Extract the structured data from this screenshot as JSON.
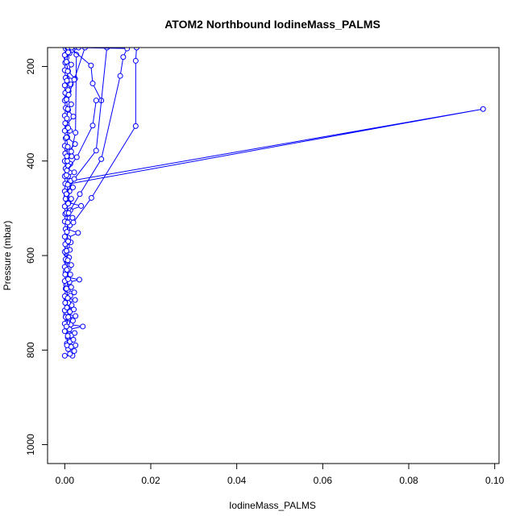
{
  "chart_data": {
    "type": "line",
    "title": "ATOM2 Northbound IodineMass_PALMS",
    "xlabel": "IodineMass_PALMS",
    "ylabel": "Pressure (mbar)",
    "xlim": [
      -0.004,
      0.101
    ],
    "ylim": [
      1040,
      160
    ],
    "y_reversed": true,
    "x_ticks": [
      0.0,
      0.02,
      0.04,
      0.06,
      0.08,
      0.1
    ],
    "x_tick_labels": [
      "0.00",
      "0.02",
      "0.04",
      "0.06",
      "0.08",
      "0.10"
    ],
    "y_ticks": [
      200,
      400,
      600,
      800,
      1000
    ],
    "y_tick_labels": [
      "200",
      "400",
      "600",
      "800",
      "1000"
    ],
    "grid": false,
    "legend": "none",
    "color": "#0000ff",
    "series": [
      {
        "points": [
          [
            0.0,
            812
          ],
          [
            0.0018,
            812
          ],
          [
            0.0012,
            808
          ],
          [
            0.0022,
            802
          ],
          [
            0.0008,
            798
          ],
          [
            0.0015,
            793
          ],
          [
            0.0025,
            790
          ],
          [
            0.0005,
            786
          ],
          [
            0.0012,
            782
          ],
          [
            0.002,
            778
          ],
          [
            0.0007,
            773
          ],
          [
            0.0015,
            769
          ],
          [
            0.0023,
            764
          ],
          [
            0.0004,
            760
          ],
          [
            0.0011,
            756
          ],
          [
            0.0042,
            750
          ],
          [
            0.0014,
            746
          ],
          [
            0.0006,
            742
          ],
          [
            0.0019,
            738
          ],
          [
            0.0009,
            733
          ],
          [
            0.0025,
            728
          ],
          [
            0.0003,
            724
          ],
          [
            0.0012,
            719
          ],
          [
            0.0021,
            714
          ],
          [
            0.0006,
            710
          ],
          [
            0.0016,
            705
          ],
          [
            0.0008,
            700
          ],
          [
            0.0024,
            694
          ],
          [
            0.0003,
            690
          ],
          [
            0.0013,
            685
          ],
          [
            0.0022,
            678
          ],
          [
            0.0007,
            673
          ],
          [
            0.0015,
            667
          ],
          [
            0.0003,
            662
          ],
          [
            0.0011,
            656
          ],
          [
            0.0034,
            651
          ],
          [
            0.0006,
            646
          ],
          [
            0.0013,
            640
          ],
          [
            0.0002,
            634
          ],
          [
            0.0009,
            628
          ],
          [
            0.0015,
            620
          ],
          [
            0.0004,
            612
          ],
          [
            0.001,
            604
          ],
          [
            0.0003,
            596
          ],
          [
            0.0012,
            588
          ],
          [
            0.0005,
            580
          ],
          [
            0.0014,
            572
          ],
          [
            0.0008,
            562
          ],
          [
            0.0031,
            552
          ],
          [
            0.0006,
            544
          ],
          [
            0.0012,
            536
          ],
          [
            0.0003,
            528
          ],
          [
            0.0018,
            520
          ],
          [
            0.0007,
            512
          ],
          [
            0.0013,
            504
          ],
          [
            0.0038,
            495
          ],
          [
            0.0009,
            488
          ],
          [
            0.0015,
            480
          ],
          [
            0.0004,
            472
          ],
          [
            0.0011,
            464
          ],
          [
            0.0019,
            456
          ],
          [
            0.0006,
            449
          ],
          [
            0.0973,
            290
          ],
          [
            0.0014,
            442
          ],
          [
            0.0008,
            432
          ],
          [
            0.0022,
            424
          ],
          [
            0.0005,
            416
          ],
          [
            0.0013,
            406
          ],
          [
            0.0004,
            398
          ],
          [
            0.0016,
            390
          ],
          [
            0.0008,
            380
          ],
          [
            0.0024,
            364
          ],
          [
            0.0006,
            350
          ],
          [
            0.0012,
            336
          ],
          [
            0.0005,
            322
          ],
          [
            0.002,
            306
          ],
          [
            0.0008,
            292
          ],
          [
            0.0015,
            280
          ],
          [
            0.0004,
            268
          ],
          [
            0.0009,
            252
          ],
          [
            0.0014,
            238
          ],
          [
            0.0005,
            224
          ],
          [
            0.0024,
            226
          ],
          [
            0.0008,
            210
          ],
          [
            0.0015,
            196
          ],
          [
            0.0004,
            182
          ],
          [
            0.0011,
            172
          ],
          [
            0.0032,
            160
          ]
        ]
      },
      {
        "points": [
          [
            0.0,
            760
          ],
          [
            0.0,
            744
          ],
          [
            0.0002,
            730
          ],
          [
            0.0,
            716
          ],
          [
            0.0001,
            700
          ],
          [
            0.0,
            686
          ],
          [
            0.0002,
            670
          ],
          [
            0.0,
            654
          ],
          [
            0.0001,
            640
          ],
          [
            0.0,
            624
          ],
          [
            0.0002,
            608
          ],
          [
            0.0,
            592
          ],
          [
            0.0001,
            576
          ],
          [
            0.0,
            560
          ],
          [
            0.0002,
            544
          ],
          [
            0.0,
            528
          ],
          [
            0.0001,
            512
          ],
          [
            0.0,
            496
          ],
          [
            0.0002,
            480
          ],
          [
            0.0,
            464
          ],
          [
            0.0001,
            448
          ],
          [
            0.0,
            432
          ],
          [
            0.0002,
            416
          ],
          [
            0.0,
            400
          ],
          [
            0.0001,
            384
          ],
          [
            0.0,
            368
          ],
          [
            0.0002,
            352
          ],
          [
            0.0,
            336
          ],
          [
            0.0001,
            320
          ],
          [
            0.0,
            304
          ],
          [
            0.0002,
            288
          ],
          [
            0.0,
            272
          ],
          [
            0.0001,
            256
          ],
          [
            0.0,
            240
          ],
          [
            0.0002,
            224
          ],
          [
            0.0,
            208
          ],
          [
            0.0001,
            192
          ],
          [
            0.0,
            176
          ],
          [
            0.0002,
            162
          ]
        ]
      },
      {
        "points": [
          [
            0.0005,
            790
          ],
          [
            0.0007,
            770
          ],
          [
            0.0004,
            750
          ],
          [
            0.0008,
            730
          ],
          [
            0.0005,
            710
          ],
          [
            0.0007,
            690
          ],
          [
            0.0004,
            670
          ],
          [
            0.0008,
            650
          ],
          [
            0.0005,
            630
          ],
          [
            0.0007,
            610
          ],
          [
            0.0004,
            590
          ],
          [
            0.0008,
            570
          ],
          [
            0.0005,
            550
          ],
          [
            0.0007,
            530
          ],
          [
            0.0004,
            510
          ],
          [
            0.0008,
            490
          ],
          [
            0.0005,
            470
          ],
          [
            0.0007,
            450
          ],
          [
            0.0004,
            430
          ],
          [
            0.0008,
            410
          ],
          [
            0.0005,
            390
          ],
          [
            0.0007,
            370
          ],
          [
            0.0004,
            350
          ],
          [
            0.0008,
            330
          ],
          [
            0.0005,
            310
          ],
          [
            0.0007,
            290
          ],
          [
            0.0004,
            270
          ],
          [
            0.0008,
            250
          ],
          [
            0.0005,
            230
          ],
          [
            0.0007,
            210
          ],
          [
            0.0004,
            190
          ],
          [
            0.0008,
            170
          ]
        ]
      },
      {
        "points": [
          [
            0.0008,
            160
          ],
          [
            0.0018,
            165
          ],
          [
            0.0027,
            175
          ],
          [
            0.0025,
            340
          ],
          [
            0.0015,
            380
          ],
          [
            0.0006,
            400
          ]
        ]
      },
      {
        "points": [
          [
            0.0006,
            160
          ],
          [
            0.0047,
            160
          ],
          [
            0.0022,
            228
          ],
          [
            0.0009,
            260
          ]
        ]
      },
      {
        "points": [
          [
            0.0012,
            160
          ],
          [
            0.0061,
            198
          ],
          [
            0.0065,
            236
          ],
          [
            0.0085,
            272
          ],
          [
            0.0073,
            272
          ],
          [
            0.0065,
            325
          ],
          [
            0.0028,
            392
          ],
          [
            0.0005,
            420
          ]
        ]
      },
      {
        "points": [
          [
            0.0008,
            160
          ],
          [
            0.0098,
            160
          ],
          [
            0.0073,
            378
          ],
          [
            0.0022,
            438
          ],
          [
            0.0004,
            470
          ]
        ]
      },
      {
        "points": [
          [
            0.0016,
            160
          ],
          [
            0.0145,
            162
          ],
          [
            0.0136,
            180
          ],
          [
            0.0129,
            220
          ],
          [
            0.0085,
            396
          ],
          [
            0.0035,
            470
          ],
          [
            0.0009,
            510
          ]
        ]
      },
      {
        "points": [
          [
            0.0167,
            160
          ],
          [
            0.0165,
            188
          ],
          [
            0.0165,
            326
          ],
          [
            0.0062,
            478
          ],
          [
            0.002,
            530
          ]
        ]
      }
    ]
  }
}
